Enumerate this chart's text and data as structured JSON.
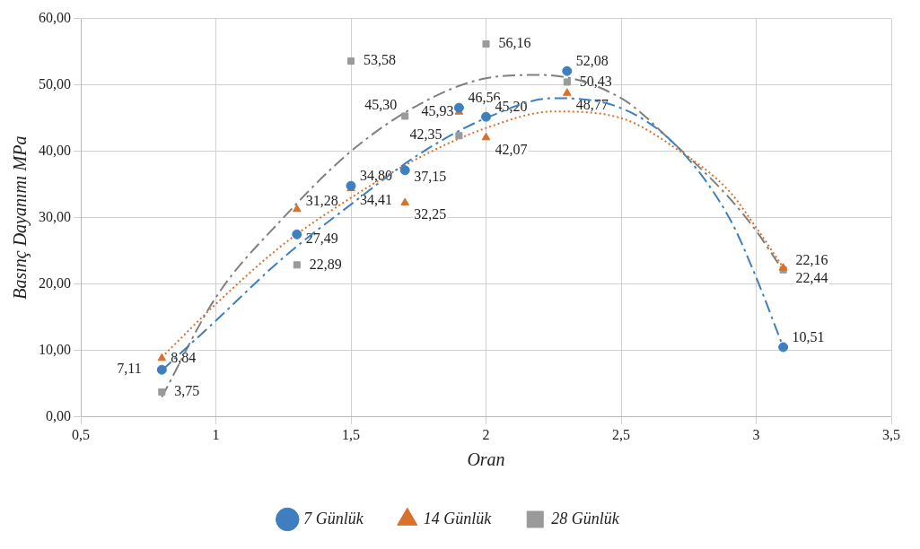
{
  "chart_data": {
    "type": "scatter",
    "xlabel": "Oran",
    "ylabel": "Basınç Dayanımı MPa",
    "xlim": [
      0.5,
      3.5
    ],
    "xticks": [
      {
        "value": 0.5,
        "label": "0,5"
      },
      1,
      {
        "value": 1.5,
        "label": "1,5"
      },
      2,
      {
        "value": 2.5,
        "label": "2,5"
      },
      3,
      {
        "value": 3.5,
        "label": "3,5"
      }
    ],
    "ylim": [
      0,
      60
    ],
    "yticks": [
      {
        "value": 0,
        "label": "0,00"
      },
      {
        "value": 10,
        "label": "10,00"
      },
      {
        "value": 20,
        "label": "20,00"
      },
      {
        "value": 30,
        "label": "30,00"
      },
      {
        "value": 40,
        "label": "40,00"
      },
      {
        "value": 50,
        "label": "50,00"
      },
      {
        "value": 60,
        "label": "60,00"
      }
    ],
    "grid": true,
    "legend": "bottom",
    "series": [
      {
        "name": "7 Günlük",
        "color": "#3f7fbf",
        "marker": "circle",
        "line_style": "dashed",
        "x": [
          0.8,
          1.3,
          1.5,
          1.7,
          1.9,
          2.0,
          2.3,
          3.1
        ],
        "values": [
          7.11,
          27.49,
          34.8,
          37.15,
          46.56,
          45.2,
          52.08,
          10.51
        ],
        "value_labels": [
          "7,11",
          "27,49",
          "34,80",
          "37,15",
          "46,56",
          "45,20",
          "52,08",
          "10,51"
        ]
      },
      {
        "name": "14 Günlük",
        "color": "#d9712b",
        "marker": "triangle",
        "line_style": "dotted",
        "x": [
          0.8,
          1.3,
          1.5,
          1.7,
          1.9,
          2.0,
          2.3,
          3.1
        ],
        "values": [
          8.84,
          31.28,
          34.41,
          32.25,
          45.93,
          42.07,
          48.77,
          22.44
        ],
        "value_labels": [
          "8,84",
          "31,28",
          "34,41",
          "32,25",
          "45,93",
          "42,07",
          "48,77",
          "22,44"
        ]
      },
      {
        "name": "28 Günlük",
        "color": "#9a9a9a",
        "marker": "square",
        "line_style": "dashed",
        "x": [
          0.8,
          1.3,
          1.5,
          1.7,
          1.9,
          2.0,
          2.3,
          3.1
        ],
        "values": [
          3.75,
          22.89,
          53.58,
          45.3,
          42.35,
          56.16,
          50.43,
          22.16
        ],
        "value_labels": [
          "3,75",
          "22,89",
          "53,58",
          "45,30",
          "42,35",
          "56,16",
          "50,43",
          "22,16"
        ]
      },
      {
        "type": "line",
        "color": "#3f7fbf",
        "line_style": "dashed",
        "x": [
          0.8,
          1.0,
          1.25,
          1.5,
          1.75,
          2.0,
          2.25,
          2.5,
          2.7,
          2.9,
          3.0,
          3.1
        ],
        "values": [
          7,
          14.5,
          24,
          32,
          39.5,
          45,
          48,
          46.5,
          41,
          30,
          21,
          10.5
        ]
      },
      {
        "type": "line",
        "color": "#d9712b",
        "line_style": "dotted",
        "x": [
          0.8,
          1.0,
          1.25,
          1.5,
          1.75,
          2.0,
          2.25,
          2.5,
          2.7,
          2.9,
          3.0,
          3.1
        ],
        "values": [
          9,
          17,
          26,
          33,
          39,
          43.5,
          46,
          45,
          40.5,
          34,
          28.5,
          22.5
        ]
      },
      {
        "type": "line",
        "color": "#808080",
        "line_style": "dashed",
        "x": [
          0.8,
          1.0,
          1.25,
          1.5,
          1.75,
          2.0,
          2.2,
          2.5,
          2.7,
          2.9,
          3.0,
          3.1
        ],
        "values": [
          3,
          18,
          30,
          40,
          47,
          51,
          51.5,
          48,
          41,
          33,
          28,
          22
        ]
      }
    ]
  }
}
